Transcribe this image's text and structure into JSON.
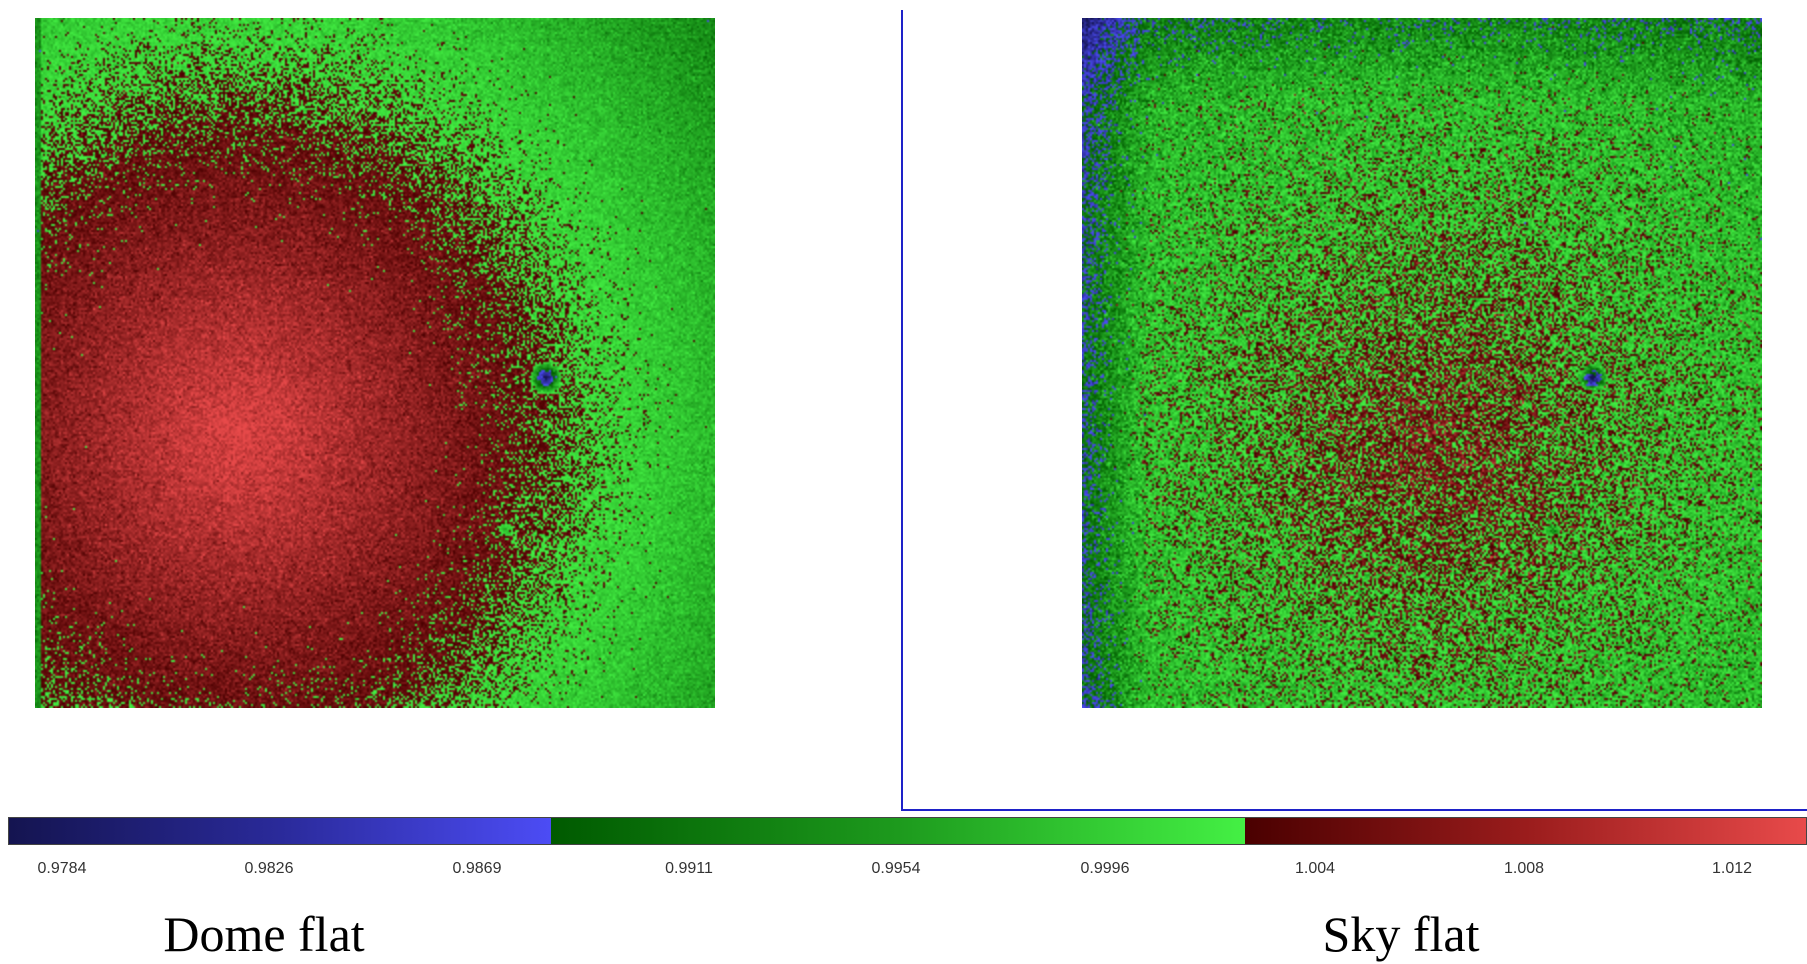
{
  "panels": [
    {
      "name": "dome-flat-image",
      "caption": "Dome flat"
    },
    {
      "name": "sky-flat-image",
      "caption": "Sky flat"
    }
  ],
  "colorbar": {
    "ticks": [
      "0.9784",
      "0.9826",
      "0.9869",
      "0.9911",
      "0.9954",
      "0.9996",
      "1.004",
      "1.008",
      "1.012"
    ],
    "segments": [
      {
        "color_dark": "#141450",
        "color_light": "#4c4cf5"
      },
      {
        "color_dark": "#005a00",
        "color_light": "#44f044"
      },
      {
        "color_dark": "#4a0000",
        "color_light": "#e84a4a"
      }
    ]
  },
  "colors": {
    "frame_line": "#1e22c8"
  }
}
